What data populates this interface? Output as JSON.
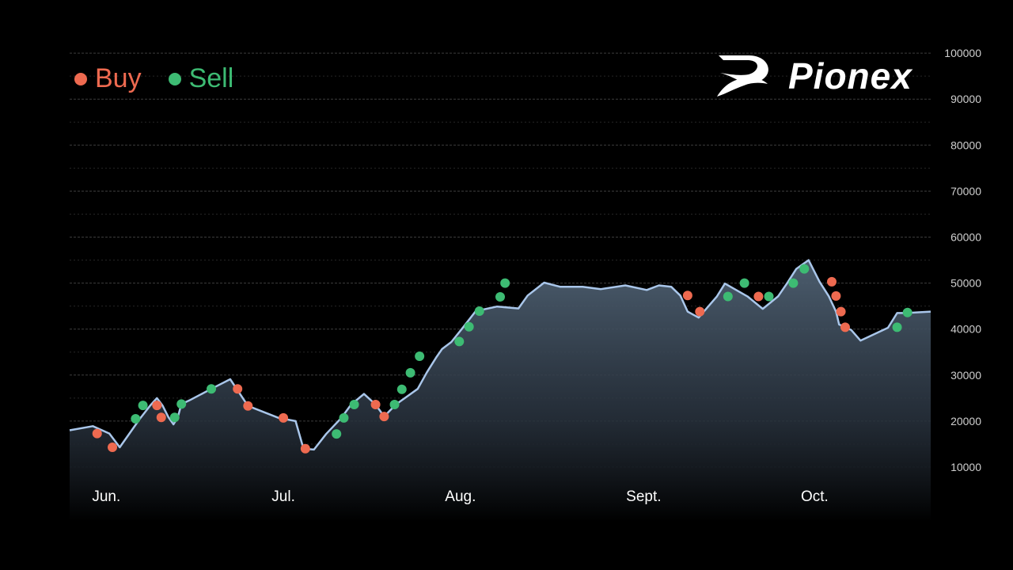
{
  "legend": {
    "buy_label": "Buy",
    "sell_label": "Sell",
    "buy_color": "#ee6a50",
    "sell_color": "#3dbb73"
  },
  "brand": {
    "name": "Pionex"
  },
  "colors": {
    "line": "#a9c6ea",
    "grid": "#3a3a3a",
    "background": "#000000"
  },
  "chart_data": {
    "type": "area",
    "ylim": [
      5000,
      100000
    ],
    "y_ticks": [
      10000,
      20000,
      30000,
      40000,
      50000,
      60000,
      70000,
      80000,
      90000,
      100000
    ],
    "grid": true,
    "legend_position": "top-left",
    "x_tick_labels": [
      "Jun.",
      "Jul.",
      "Aug.",
      "Sept.",
      "Oct."
    ],
    "x": [
      0,
      3.8,
      6.5,
      8.2,
      11.5,
      13.2,
      14.3,
      15.2,
      16.2,
      17.0,
      17.7,
      18.3,
      19.6,
      23.2,
      26.3,
      29.2,
      34.2,
      37.0,
      38.3,
      40.0,
      42.0,
      44.5,
      46.1,
      48.2,
      50.1,
      51.5,
      53.4,
      57.0,
      58.5,
      60.1,
      61.0,
      62.5,
      64.5,
      66.5,
      70.0,
      73.5,
      75.0,
      77.7,
      80.3,
      84.0,
      87.0,
      91.0,
      94.5,
      96.5,
      98.5,
      100.0,
      101.2,
      103.0,
      106.0,
      107.3,
      111.0,
      113.5,
      116.0,
      117.5,
      119.0,
      121.0,
      122.8,
      124.3,
      125.5,
      126.0,
      127.0,
      128.0,
      129.5,
      134.0,
      135.5,
      137.0,
      141.0
    ],
    "y": [
      18000,
      18900,
      17300,
      14300,
      20500,
      23400,
      25000,
      23400,
      20800,
      19300,
      20800,
      23700,
      24500,
      27000,
      29100,
      23300,
      20700,
      20000,
      14000,
      13800,
      17200,
      20700,
      23600,
      25900,
      23600,
      21000,
      23600,
      27000,
      30600,
      34000,
      35700,
      37200,
      40500,
      43900,
      44900,
      44500,
      47300,
      50100,
      49200,
      49200,
      48700,
      49500,
      48500,
      49500,
      49200,
      47300,
      43800,
      42500,
      47100,
      49900,
      47100,
      44400,
      47100,
      50000,
      53100,
      55000,
      50300,
      47200,
      43800,
      41000,
      40400,
      39800,
      37500,
      40300,
      43500,
      43500,
      43800
    ],
    "buy_points": [
      [
        4.5,
        17300
      ],
      [
        7.0,
        14300
      ],
      [
        14.3,
        23400
      ],
      [
        15.0,
        20800
      ],
      [
        27.5,
        27000
      ],
      [
        29.2,
        23300
      ],
      [
        35.0,
        20700
      ],
      [
        38.6,
        14000
      ],
      [
        50.1,
        23600
      ],
      [
        51.5,
        21000
      ],
      [
        101.2,
        47300
      ],
      [
        103.2,
        43800
      ],
      [
        112.8,
        47100
      ],
      [
        124.8,
        50300
      ],
      [
        125.5,
        47200
      ],
      [
        126.3,
        43800
      ],
      [
        127.0,
        40400
      ]
    ],
    "sell_points": [
      [
        10.8,
        20500
      ],
      [
        12.0,
        23400
      ],
      [
        17.2,
        20800
      ],
      [
        18.3,
        23700
      ],
      [
        23.2,
        27000
      ],
      [
        43.7,
        17200
      ],
      [
        44.9,
        20700
      ],
      [
        46.6,
        23600
      ],
      [
        53.2,
        23600
      ],
      [
        54.4,
        26900
      ],
      [
        55.8,
        30500
      ],
      [
        57.3,
        34100
      ],
      [
        63.8,
        37300
      ],
      [
        65.4,
        40500
      ],
      [
        67.1,
        43900
      ],
      [
        70.5,
        47000
      ],
      [
        71.3,
        50000
      ],
      [
        107.8,
        47100
      ],
      [
        110.5,
        50000
      ],
      [
        114.5,
        47100
      ],
      [
        118.5,
        50000
      ],
      [
        120.3,
        53100
      ],
      [
        135.5,
        40400
      ],
      [
        137.2,
        43600
      ]
    ]
  }
}
